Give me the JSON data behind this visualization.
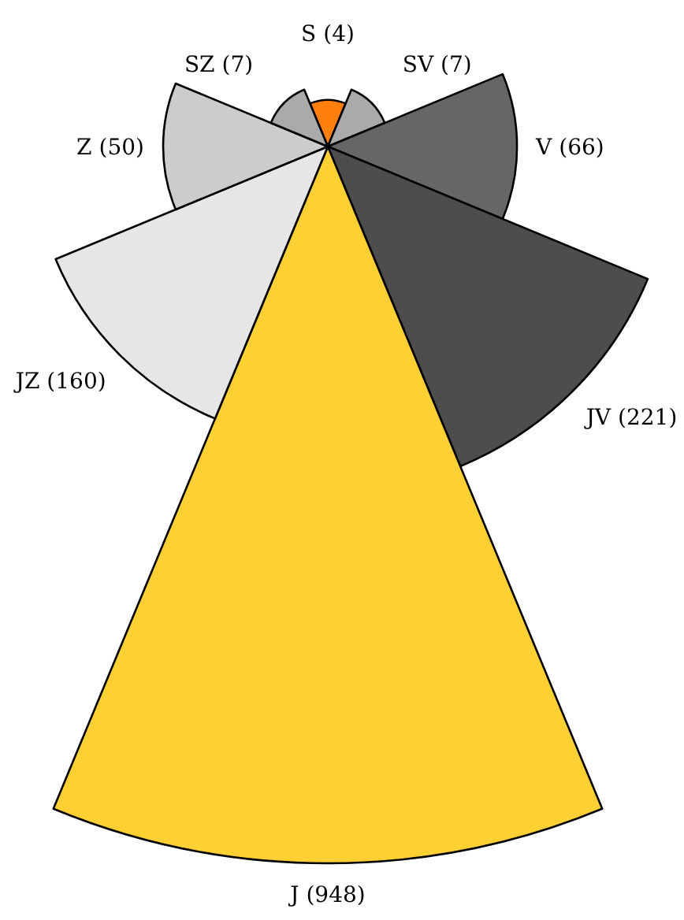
{
  "chart_data": {
    "type": "other",
    "categories": [
      "S",
      "SV",
      "V",
      "JV",
      "J",
      "JZ",
      "Z",
      "SZ"
    ],
    "values": [
      4,
      7,
      66,
      221,
      948,
      160,
      50,
      7
    ],
    "value_labels": [
      "(4)",
      "(7)",
      "(66)",
      "(221)",
      "(948)",
      "(160)",
      "(50)",
      "(7)"
    ],
    "colors": [
      "#ff7f0e",
      "#aaaaaa",
      "#666666",
      "#4d4d4d",
      "#ffd033",
      "#e6e6e6",
      "#cccccc",
      "#aaaaaa"
    ]
  }
}
